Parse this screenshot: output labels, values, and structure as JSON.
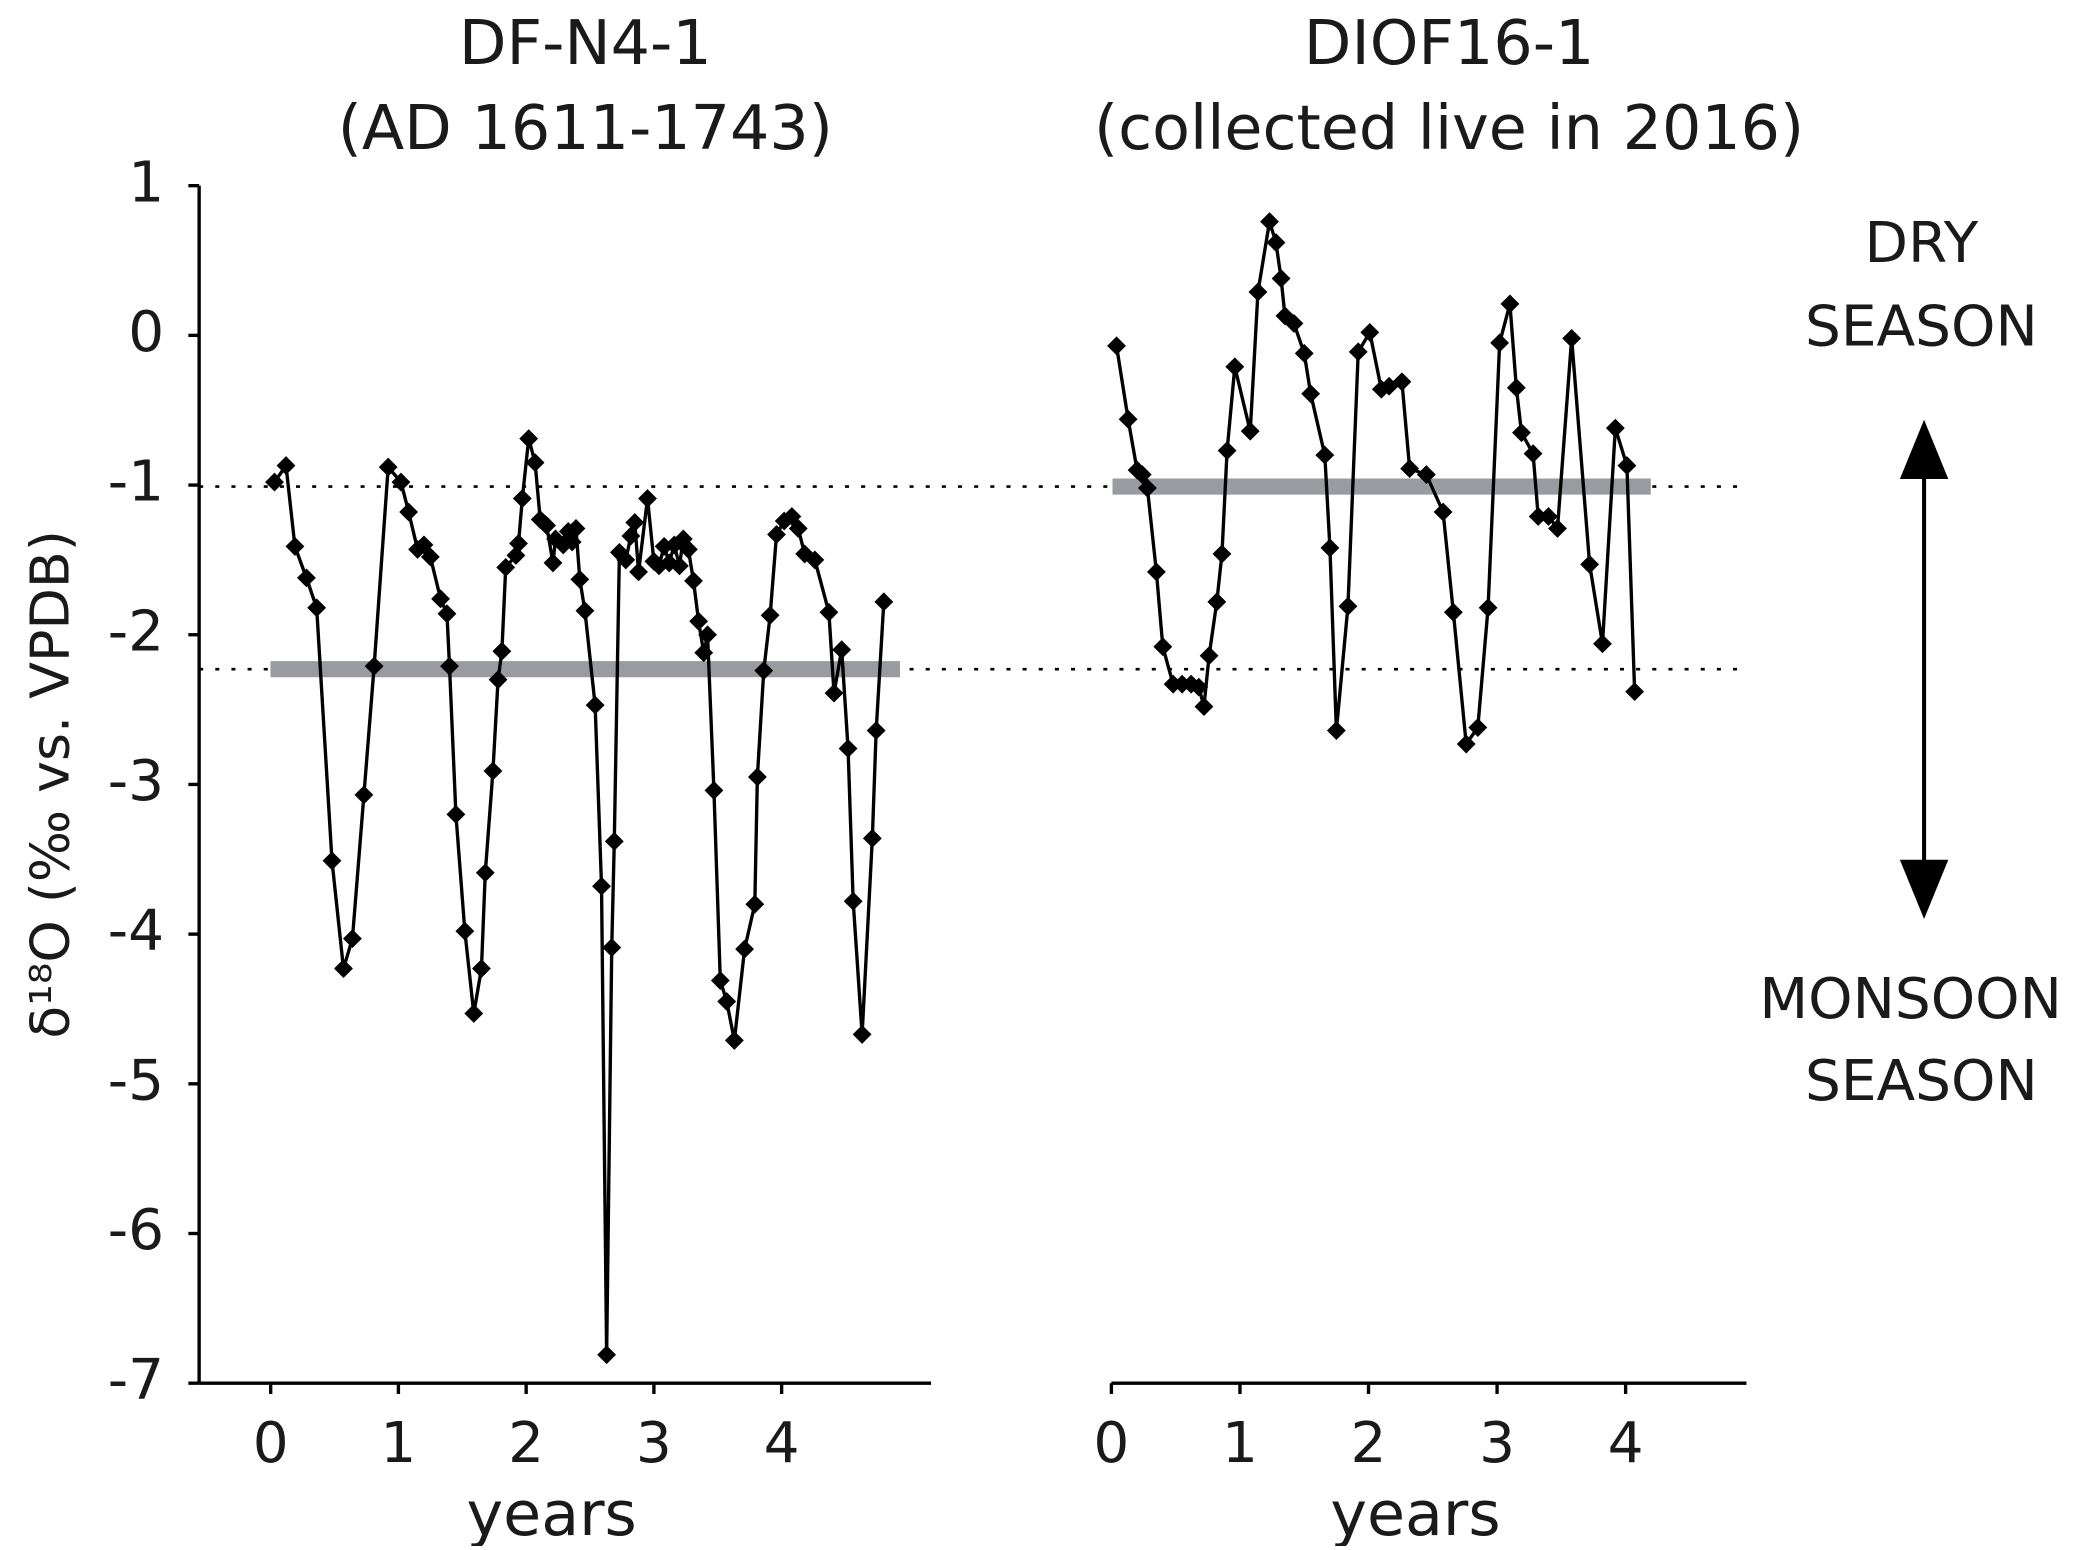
{
  "chart_data": [
    {
      "type": "line",
      "title": "DF-N4-1",
      "subtitle": "(AD 1611-1743)",
      "xlabel": "years",
      "ylabel": "δ¹⁸O (‰ vs. VPDB)",
      "xlim": [
        -0.56,
        5.17
      ],
      "xticks": [
        0,
        1,
        2,
        3,
        4
      ],
      "ylim": [
        -7,
        1
      ],
      "yticks": [
        1,
        0,
        -1,
        -2,
        -3,
        -4,
        -5,
        -6,
        -7
      ],
      "mean_line": {
        "value": -2.23,
        "color": "#999ba0"
      },
      "series": [
        {
          "color": "#000000",
          "x": [
            0.03,
            0.12,
            0.19,
            0.28,
            0.36,
            0.48,
            0.57,
            0.64,
            0.73,
            0.81,
            0.92,
            1.02,
            1.08,
            1.15,
            1.2,
            1.25,
            1.33,
            1.38,
            1.4,
            1.45,
            1.52,
            1.59,
            1.65,
            1.68,
            1.74,
            1.78,
            1.81,
            1.84,
            1.92,
            1.94,
            1.97,
            2.02,
            2.07,
            2.11,
            2.16,
            2.21,
            2.23,
            2.29,
            2.33,
            2.36,
            2.39,
            2.42,
            2.46,
            2.54,
            2.59,
            2.63,
            2.67,
            2.69,
            2.73,
            2.78,
            2.82,
            2.85,
            2.88,
            2.95,
            3.0,
            3.04,
            3.08,
            3.12,
            3.16,
            3.2,
            3.23,
            3.27,
            3.31,
            3.35,
            3.39,
            3.42,
            3.47,
            3.52,
            3.57,
            3.63,
            3.71,
            3.79,
            3.81,
            3.86,
            3.91,
            3.96,
            4.02,
            4.08,
            4.13,
            4.18,
            4.26,
            4.37,
            4.41,
            4.47,
            4.52,
            4.56,
            4.63,
            4.71,
            4.74,
            4.8
          ],
          "values": [
            -0.98,
            -0.87,
            -1.41,
            -1.62,
            -1.82,
            -3.51,
            -4.23,
            -4.03,
            -3.07,
            -2.21,
            -0.88,
            -0.98,
            -1.18,
            -1.43,
            -1.4,
            -1.48,
            -1.76,
            -1.86,
            -2.21,
            -3.2,
            -3.98,
            -4.53,
            -4.23,
            -3.59,
            -2.91,
            -2.3,
            -2.11,
            -1.55,
            -1.47,
            -1.39,
            -1.09,
            -0.69,
            -0.85,
            -1.23,
            -1.27,
            -1.52,
            -1.36,
            -1.4,
            -1.31,
            -1.38,
            -1.29,
            -1.63,
            -1.84,
            -2.47,
            -3.68,
            -6.81,
            -4.09,
            -3.38,
            -1.45,
            -1.5,
            -1.34,
            -1.25,
            -1.58,
            -1.09,
            -1.51,
            -1.54,
            -1.41,
            -1.52,
            -1.4,
            -1.54,
            -1.36,
            -1.43,
            -1.64,
            -1.91,
            -2.12,
            -2.0,
            -3.04,
            -4.31,
            -4.45,
            -4.71,
            -4.1,
            -3.8,
            -2.95,
            -2.24,
            -1.87,
            -1.33,
            -1.24,
            -1.21,
            -1.29,
            -1.46,
            -1.5,
            -1.85,
            -2.39,
            -2.1,
            -2.76,
            -3.78,
            -4.67,
            -3.36,
            -2.64,
            -1.78
          ]
        }
      ]
    },
    {
      "type": "line",
      "title": "DIOF16-1",
      "subtitle": "(collected live in 2016)",
      "xlabel": "years",
      "xlim": [
        0,
        4.94
      ],
      "xticks": [
        0,
        1,
        2,
        3,
        4
      ],
      "ylim": [
        -7,
        1
      ],
      "mean_line": {
        "value": -1.01,
        "color": "#999ba0"
      },
      "annotations": [
        "DRY",
        "SEASON",
        "MONSOON",
        "SEASON"
      ],
      "series": [
        {
          "color": "#000000",
          "x": [
            0.04,
            0.13,
            0.2,
            0.24,
            0.28,
            0.35,
            0.4,
            0.48,
            0.55,
            0.62,
            0.68,
            0.72,
            0.76,
            0.82,
            0.86,
            0.9,
            0.96,
            1.08,
            1.14,
            1.23,
            1.28,
            1.32,
            1.35,
            1.42,
            1.5,
            1.55,
            1.66,
            1.7,
            1.75,
            1.84,
            1.92,
            2.01,
            2.1,
            2.16,
            2.26,
            2.32,
            2.45,
            2.58,
            2.66,
            2.76,
            2.85,
            2.93,
            3.02,
            3.1,
            3.15,
            3.19,
            3.28,
            3.32,
            3.4,
            3.47,
            3.58,
            3.72,
            3.82,
            3.92,
            4.01,
            4.07
          ],
          "values": [
            -0.07,
            -0.56,
            -0.9,
            -0.93,
            -1.02,
            -1.58,
            -2.08,
            -2.33,
            -2.33,
            -2.33,
            -2.35,
            -2.48,
            -2.14,
            -1.78,
            -1.46,
            -0.77,
            -0.21,
            -0.64,
            0.29,
            0.76,
            0.62,
            0.38,
            0.13,
            0.08,
            -0.12,
            -0.39,
            -0.8,
            -1.42,
            -2.64,
            -1.81,
            -0.11,
            0.02,
            -0.36,
            -0.34,
            -0.31,
            -0.89,
            -0.93,
            -1.18,
            -1.85,
            -2.73,
            -2.62,
            -1.82,
            -0.05,
            0.21,
            -0.35,
            -0.65,
            -0.79,
            -1.21,
            -1.21,
            -1.29,
            -0.02,
            -1.53,
            -2.06,
            -0.62,
            -0.87,
            -2.38
          ]
        }
      ]
    }
  ]
}
